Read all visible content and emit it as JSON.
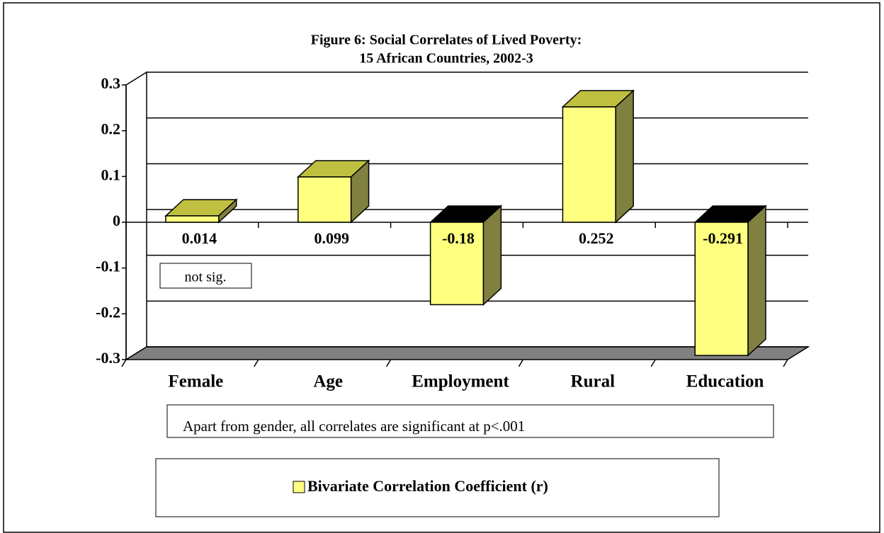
{
  "chart_data": {
    "type": "bar",
    "title": [
      "Figure 6: Social Correlates of Lived Poverty:",
      "15 African Countries, 2002-3"
    ],
    "categories": [
      "Female",
      "Age",
      "Employment",
      "Rural",
      "Education"
    ],
    "series": [
      {
        "name": "Bivariate Correlation Coefficient (r)",
        "color": "#ffff80",
        "values": [
          0.014,
          0.099,
          -0.18,
          0.252,
          -0.291
        ]
      }
    ],
    "ylim": [
      -0.3,
      0.3
    ],
    "yticks": [
      -0.3,
      -0.2,
      -0.1,
      0,
      0.1,
      0.2,
      0.3
    ],
    "grid": true,
    "annotations": [
      "not sig.",
      "Apart from gender, all correlates are significant at p<.001"
    ]
  }
}
